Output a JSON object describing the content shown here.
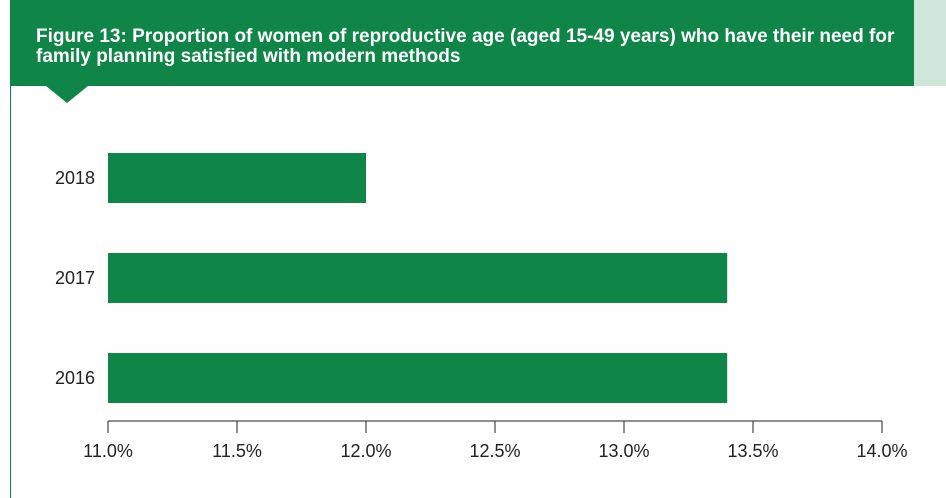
{
  "header": {
    "title": "Figure 13: Proportion of women of reproductive age (aged 15-49 years) who have their need for family planning satisfied with modern methods"
  },
  "colors": {
    "bar": "#0f8548",
    "header_band": "#0f8548",
    "header_accent": "#cfe7d8",
    "axis": "#222222"
  },
  "chart_data": {
    "type": "bar",
    "orientation": "horizontal",
    "title": "Figure 13: Proportion of women of reproductive age (aged 15-49 years) who have their need for family planning satisfied with modern methods",
    "categories": [
      "2018",
      "2017",
      "2016"
    ],
    "values": [
      12.0,
      13.4,
      13.4
    ],
    "unit": "%",
    "xlim": [
      11.0,
      14.0
    ],
    "xticks": [
      11.0,
      11.5,
      12.0,
      12.5,
      13.0,
      13.5,
      14.0
    ],
    "xtick_labels": [
      "11.0%",
      "11.5%",
      "12.0%",
      "12.5%",
      "13.0%",
      "13.5%",
      "14.0%"
    ],
    "xlabel": "",
    "ylabel": "",
    "grid": false,
    "legend": "none"
  }
}
